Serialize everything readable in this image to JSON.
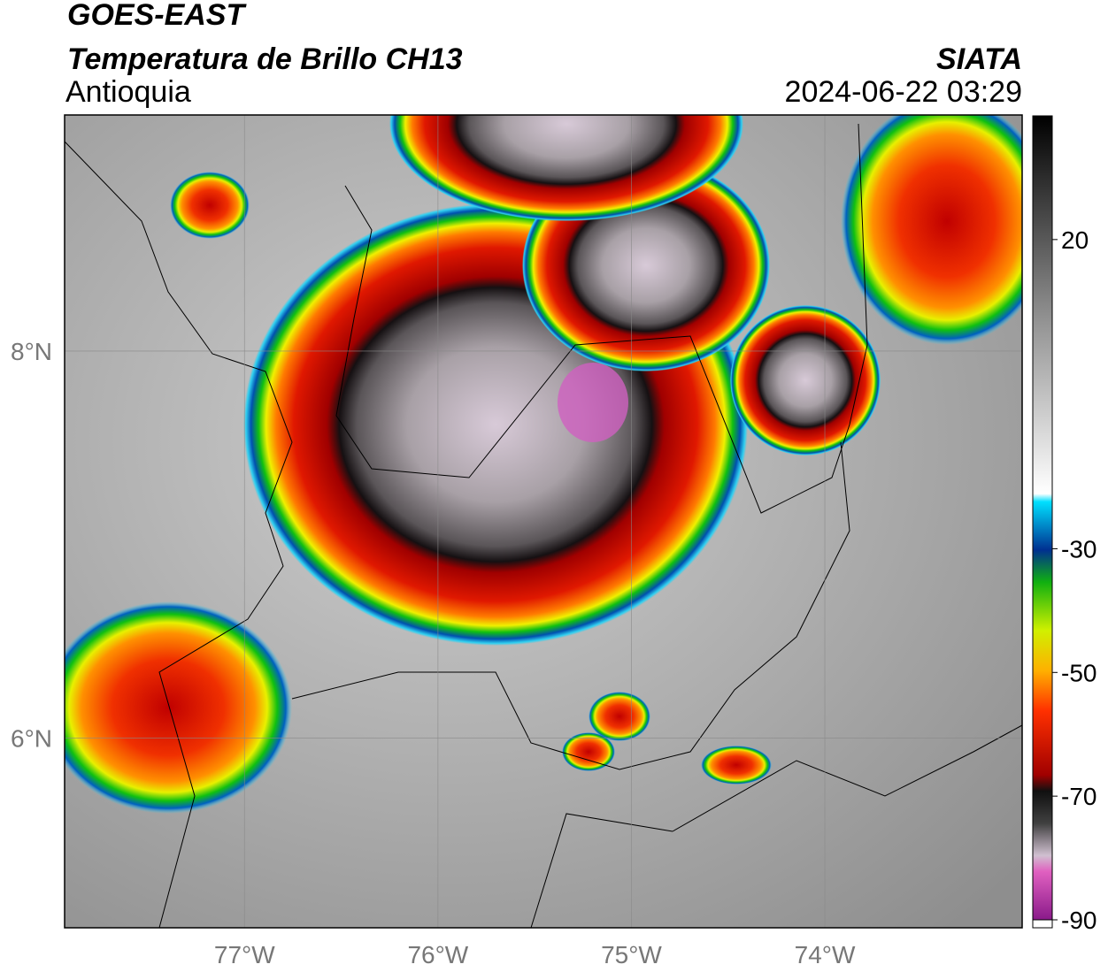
{
  "header": {
    "title": "GOES-EAST",
    "subtitle": "Temperatura de Brillo CH13",
    "region": "Antioquia",
    "source": "SIATA",
    "datetime": "2024-06-22 03:29"
  },
  "map": {
    "xlim": [
      -77.93,
      -72.98
    ],
    "ylim": [
      5.02,
      9.22
    ],
    "xticks": [
      {
        "value": -77,
        "label": "77°W"
      },
      {
        "value": -76,
        "label": "76°W"
      },
      {
        "value": -75,
        "label": "75°W"
      },
      {
        "value": -74,
        "label": "74°W"
      }
    ],
    "yticks": [
      {
        "value": 6,
        "label": "6°N"
      },
      {
        "value": 8,
        "label": "8°N"
      }
    ],
    "grid": true
  },
  "colorbar": {
    "lim": [
      -90,
      40
    ],
    "ticks": [
      20,
      -30,
      -50,
      -70,
      -90
    ]
  }
}
